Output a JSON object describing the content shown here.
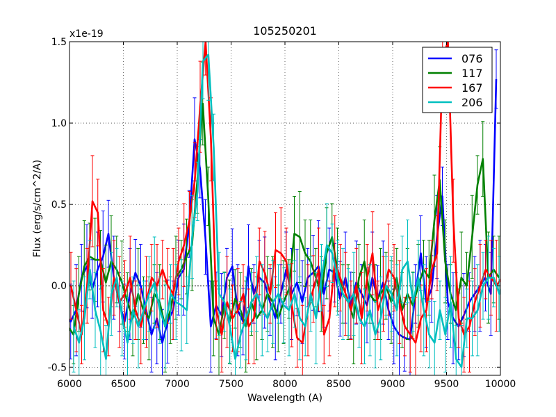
{
  "chart_data": {
    "type": "line",
    "title": "105250201",
    "xlabel": "Wavelength (A)",
    "ylabel": "Flux (erg/s/cm^2/A)",
    "y_scale_label": "x1e-19",
    "xlim": [
      6000,
      10000
    ],
    "ylim": [
      -0.55,
      1.5
    ],
    "x_ticks": [
      6000,
      6500,
      7000,
      7500,
      8000,
      8500,
      9000,
      9500,
      10000
    ],
    "y_ticks": [
      -0.5,
      0.0,
      0.5,
      1.0,
      1.5
    ],
    "x_tick_labels": [
      "6000",
      "6500",
      "7000",
      "7500",
      "8000",
      "8500",
      "9000",
      "9500",
      "10000"
    ],
    "y_tick_labels": [
      "-0.5",
      "0.0",
      "0.5",
      "1.0",
      "1.5"
    ],
    "grid": true,
    "legend_position": "top-right",
    "reference_line": 0,
    "x": [
      6000,
      6050,
      6100,
      6150,
      6200,
      6250,
      6300,
      6350,
      6400,
      6450,
      6500,
      6550,
      6600,
      6650,
      6700,
      6750,
      6800,
      6850,
      6900,
      6950,
      7000,
      7050,
      7100,
      7150,
      7200,
      7250,
      7300,
      7350,
      7400,
      7450,
      7500,
      7550,
      7600,
      7650,
      7700,
      7750,
      7800,
      7850,
      7900,
      7950,
      8000,
      8050,
      8100,
      8150,
      8200,
      8250,
      8300,
      8350,
      8400,
      8450,
      8500,
      8550,
      8600,
      8650,
      8700,
      8750,
      8800,
      8850,
      8900,
      8950,
      9000,
      9050,
      9100,
      9150,
      9200,
      9250,
      9300,
      9350,
      9400,
      9450,
      9500,
      9550,
      9600,
      9650,
      9700,
      9750,
      9800,
      9850,
      9900,
      9950,
      10000
    ],
    "series": [
      {
        "name": "076",
        "color": "#0000ff",
        "values": [
          -0.18,
          -0.22,
          -0.15,
          0.05,
          0.12,
          -0.02,
          0.1,
          0.18,
          0.32,
          0.05,
          -0.1,
          -0.22,
          -0.05,
          0.08,
          0.0,
          -0.15,
          -0.3,
          -0.2,
          -0.35,
          -0.22,
          -0.15,
          0.05,
          0.1,
          0.38,
          0.9,
          0.72,
          0.3,
          -0.25,
          -0.12,
          -0.18,
          0.05,
          0.12,
          -0.15,
          -0.22,
          0.12,
          -0.05,
          0.05,
          0.02,
          -0.1,
          -0.2,
          -0.05,
          0.1,
          -0.05,
          0.02,
          -0.1,
          0.05,
          0.08,
          0.12,
          -0.05,
          0.1,
          0.08,
          -0.08,
          0.05,
          -0.12,
          0.02,
          -0.05,
          -0.12,
          0.05,
          -0.08,
          0.02,
          -0.15,
          -0.25,
          -0.3,
          -0.32,
          -0.33,
          -0.05,
          0.2,
          -0.1,
          -0.02,
          0.3,
          0.55,
          -0.1,
          -0.2,
          -0.25,
          -0.18,
          -0.1,
          -0.05,
          0.0,
          0.05,
          -0.05,
          1.27
        ]
      },
      {
        "name": "117",
        "color": "#008000",
        "values": [
          -0.25,
          -0.3,
          -0.05,
          0.12,
          0.18,
          0.16,
          0.16,
          0.02,
          0.15,
          0.1,
          0.02,
          -0.1,
          -0.2,
          -0.05,
          -0.15,
          -0.2,
          -0.05,
          -0.1,
          -0.25,
          -0.15,
          0.05,
          0.1,
          0.18,
          0.25,
          0.65,
          1.12,
          0.55,
          -0.2,
          -0.3,
          -0.12,
          -0.22,
          -0.08,
          -0.15,
          -0.25,
          -0.1,
          -0.2,
          -0.15,
          -0.05,
          -0.1,
          -0.2,
          -0.1,
          -0.02,
          0.32,
          0.3,
          0.2,
          0.15,
          0.05,
          -0.05,
          0.2,
          0.3,
          0.1,
          -0.05,
          -0.1,
          -0.2,
          0.05,
          0.15,
          -0.05,
          -0.1,
          -0.05,
          0.0,
          -0.1,
          0.05,
          -0.15,
          -0.05,
          -0.12,
          0.0,
          0.1,
          0.05,
          0.4,
          0.65,
          0.15,
          -0.05,
          -0.15,
          0.05,
          0.0,
          0.3,
          0.62,
          0.78,
          0.05,
          0.1,
          0.05
        ]
      },
      {
        "name": "167",
        "color": "#ff0000",
        "values": [
          0.0,
          -0.15,
          -0.3,
          0.0,
          0.52,
          0.45,
          -0.15,
          -0.25,
          0.05,
          -0.1,
          -0.05,
          0.05,
          -0.15,
          -0.25,
          -0.1,
          0.05,
          0.0,
          0.1,
          0.0,
          -0.05,
          0.15,
          0.25,
          0.4,
          0.65,
          1.1,
          1.5,
          0.9,
          -0.15,
          -0.3,
          -0.1,
          -0.2,
          -0.15,
          -0.05,
          -0.25,
          -0.2,
          0.15,
          0.08,
          -0.05,
          0.22,
          0.2,
          0.15,
          -0.12,
          -0.32,
          -0.35,
          -0.15,
          -0.02,
          0.1,
          -0.3,
          -0.2,
          0.15,
          0.05,
          -0.05,
          -0.15,
          0.0,
          -0.2,
          0.05,
          0.2,
          -0.15,
          -0.05,
          0.1,
          0.05,
          -0.1,
          -0.25,
          -0.3,
          -0.35,
          -0.2,
          -0.15,
          0.1,
          0.2,
          1.4,
          1.5,
          0.4,
          -0.2,
          -0.3,
          -0.25,
          -0.1,
          0.0,
          0.1,
          0.05,
          0.0,
          0.05
        ]
      },
      {
        "name": "206",
        "color": "#00bfbf",
        "values": [
          -0.25,
          -0.35,
          -0.2,
          0.1,
          -0.15,
          -0.28,
          -0.45,
          -0.05,
          0.05,
          -0.2,
          -0.35,
          -0.15,
          -0.25,
          -0.15,
          -0.05,
          0.02,
          -0.15,
          -0.25,
          -0.05,
          -0.1,
          -0.12,
          -0.15,
          0.3,
          0.58,
          1.38,
          1.42,
          0.85,
          -0.05,
          -0.1,
          -0.25,
          -0.45,
          -0.3,
          -0.2,
          -0.1,
          -0.05,
          -0.15,
          -0.2,
          -0.1,
          -0.05,
          -0.12,
          -0.15,
          -0.05,
          -0.2,
          -0.25,
          -0.05,
          -0.2,
          0.05,
          0.25,
          0.2,
          0.05,
          -0.05,
          -0.1,
          -0.05,
          -0.2,
          -0.25,
          -0.15,
          -0.3,
          -0.2,
          0.0,
          -0.05,
          -0.15,
          0.1,
          0.15,
          -0.1,
          0.05,
          -0.15,
          -0.3,
          -0.35,
          -0.15,
          -0.3,
          -0.1,
          -0.45,
          -0.5,
          -0.2,
          -0.2,
          -0.15,
          0.0,
          0.05,
          0.05,
          -0.05,
          0.05
        ]
      }
    ]
  }
}
